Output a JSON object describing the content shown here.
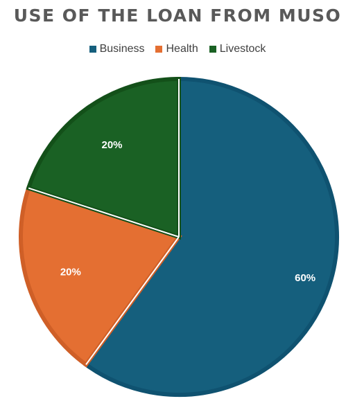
{
  "chart_data": {
    "type": "pie",
    "title": "USE OF THE LOAN FROM MUSO",
    "categories": [
      "Business",
      "Health",
      "Livestock"
    ],
    "values": [
      60,
      20,
      20
    ],
    "data_labels": [
      "60%",
      "20%",
      "20%"
    ],
    "colors": [
      "#155f7d",
      "#e46f32",
      "#1a6124"
    ],
    "border_colors": [
      "#0f5270",
      "#cf5f27",
      "#135019"
    ],
    "legend_position": "top"
  }
}
